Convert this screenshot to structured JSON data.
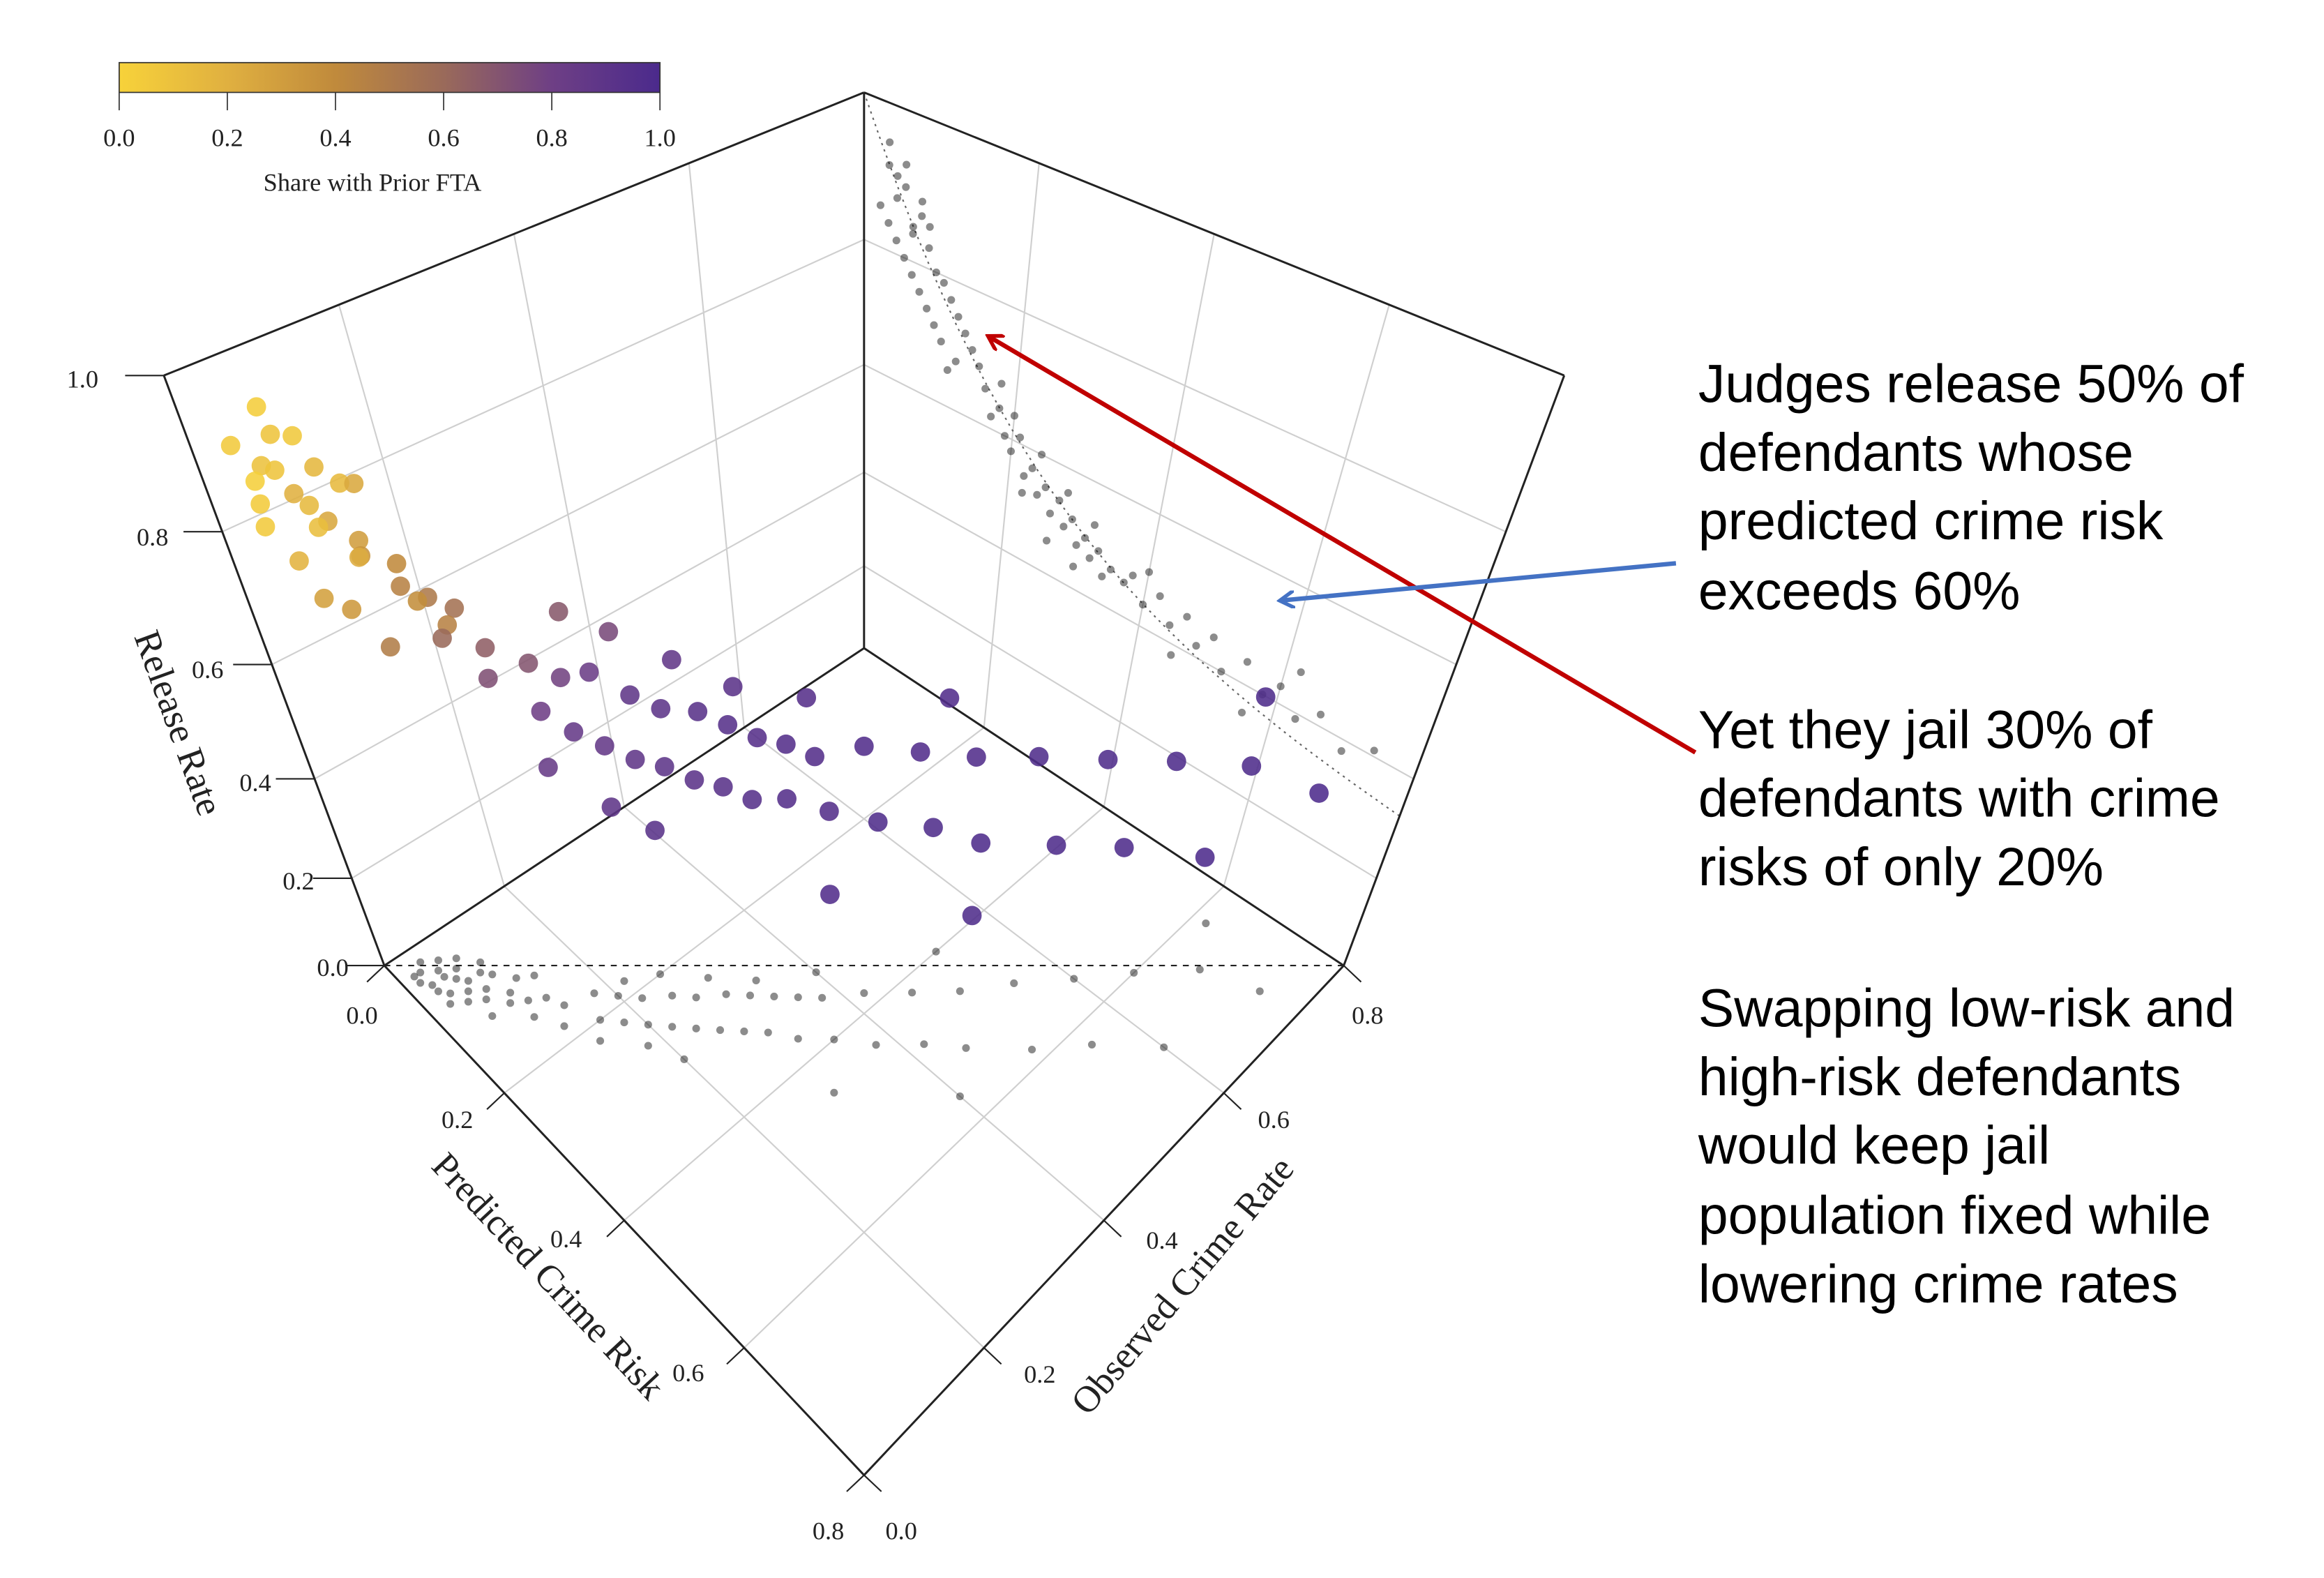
{
  "chart_data": {
    "type": "scatter",
    "subtype": "3d-scatter",
    "title": "",
    "grid": true,
    "axes": {
      "x": {
        "label": "Predicted Crime Risk",
        "range": [
          0,
          0.8
        ],
        "ticks": [
          "0.0",
          "0.2",
          "0.4",
          "0.6",
          "0.8"
        ]
      },
      "y": {
        "label": "Observed Crime Rate",
        "range": [
          0,
          0.8
        ],
        "ticks": [
          "0.0",
          "0.2",
          "0.4",
          "0.6",
          "0.8"
        ]
      },
      "z": {
        "label": "Release Rate",
        "range": [
          0,
          1.0
        ],
        "ticks": [
          "0.0",
          "0.2",
          "0.4",
          "0.6",
          "0.8",
          "1.0"
        ]
      }
    },
    "colorbar": {
      "label": "Share with Prior FTA",
      "range": [
        0,
        1
      ],
      "ticks": [
        "0.0",
        "0.2",
        "0.4",
        "0.6",
        "0.8",
        "1.0"
      ],
      "colors": [
        "#f7d23a",
        "#e0b040",
        "#c08a3c",
        "#9a6a5a",
        "#6e3f85",
        "#4b2a8c"
      ],
      "placement": "top-left"
    },
    "floor_projection": true,
    "wall_projection": true,
    "diagonal_reference_line": "dashed",
    "wall_fit_curve": "dotted",
    "projection_color": "#000000",
    "points": {
      "columns": [
        "predicted_crime_risk",
        "observed_crime_rate",
        "release_rate",
        "share_prior_fta"
      ],
      "values": [
        [
          0.03,
          0.02,
          0.92,
          0.05
        ],
        [
          0.04,
          0.05,
          0.88,
          0.08
        ],
        [
          0.05,
          0.03,
          0.9,
          0.1
        ],
        [
          0.02,
          0.04,
          0.86,
          0.02
        ],
        [
          0.06,
          0.06,
          0.84,
          0.15
        ],
        [
          0.04,
          0.02,
          0.82,
          0.05
        ],
        [
          0.07,
          0.04,
          0.87,
          0.2
        ],
        [
          0.05,
          0.07,
          0.8,
          0.12
        ],
        [
          0.08,
          0.06,
          0.83,
          0.25
        ],
        [
          0.03,
          0.06,
          0.95,
          0.03
        ],
        [
          0.06,
          0.03,
          0.78,
          0.18
        ],
        [
          0.09,
          0.08,
          0.8,
          0.3
        ],
        [
          0.07,
          0.09,
          0.76,
          0.22
        ],
        [
          0.1,
          0.07,
          0.79,
          0.35
        ],
        [
          0.04,
          0.08,
          0.91,
          0.06
        ],
        [
          0.08,
          0.03,
          0.74,
          0.28
        ],
        [
          0.11,
          0.1,
          0.77,
          0.4
        ],
        [
          0.06,
          0.1,
          0.85,
          0.14
        ],
        [
          0.09,
          0.05,
          0.72,
          0.32
        ],
        [
          0.12,
          0.09,
          0.75,
          0.45
        ],
        [
          0.05,
          0.05,
          0.93,
          0.08
        ],
        [
          0.1,
          0.12,
          0.7,
          0.38
        ],
        [
          0.13,
          0.11,
          0.73,
          0.5
        ],
        [
          0.07,
          0.07,
          0.89,
          0.16
        ],
        [
          0.12,
          0.06,
          0.68,
          0.48
        ],
        [
          0.14,
          0.13,
          0.71,
          0.55
        ],
        [
          0.08,
          0.1,
          0.86,
          0.24
        ],
        [
          0.11,
          0.14,
          0.66,
          0.45
        ],
        [
          0.15,
          0.1,
          0.69,
          0.6
        ],
        [
          0.03,
          0.03,
          0.84,
          0.04
        ],
        [
          0.16,
          0.14,
          0.66,
          0.65
        ],
        [
          0.17,
          0.18,
          0.62,
          0.7
        ],
        [
          0.18,
          0.12,
          0.64,
          0.72
        ],
        [
          0.19,
          0.2,
          0.6,
          0.78
        ],
        [
          0.2,
          0.16,
          0.58,
          0.8
        ],
        [
          0.21,
          0.22,
          0.61,
          0.82
        ],
        [
          0.22,
          0.18,
          0.55,
          0.85
        ],
        [
          0.23,
          0.25,
          0.57,
          0.88
        ],
        [
          0.24,
          0.2,
          0.53,
          0.86
        ],
        [
          0.25,
          0.27,
          0.55,
          0.9
        ],
        [
          0.26,
          0.22,
          0.51,
          0.88
        ],
        [
          0.27,
          0.3,
          0.54,
          0.92
        ],
        [
          0.28,
          0.24,
          0.5,
          0.9
        ],
        [
          0.29,
          0.32,
          0.52,
          0.93
        ],
        [
          0.3,
          0.26,
          0.48,
          0.91
        ],
        [
          0.31,
          0.34,
          0.5,
          0.94
        ],
        [
          0.32,
          0.28,
          0.47,
          0.92
        ],
        [
          0.33,
          0.36,
          0.49,
          0.95
        ],
        [
          0.34,
          0.3,
          0.45,
          0.93
        ],
        [
          0.35,
          0.38,
          0.47,
          0.95
        ],
        [
          0.18,
          0.22,
          0.68,
          0.68
        ],
        [
          0.2,
          0.26,
          0.64,
          0.75
        ],
        [
          0.22,
          0.14,
          0.52,
          0.84
        ],
        [
          0.24,
          0.3,
          0.6,
          0.87
        ],
        [
          0.26,
          0.18,
          0.46,
          0.89
        ],
        [
          0.28,
          0.34,
          0.56,
          0.91
        ],
        [
          0.3,
          0.2,
          0.44,
          0.92
        ],
        [
          0.32,
          0.4,
          0.53,
          0.94
        ],
        [
          0.37,
          0.32,
          0.46,
          0.95
        ],
        [
          0.38,
          0.42,
          0.48,
          0.96
        ],
        [
          0.4,
          0.35,
          0.44,
          0.95
        ],
        [
          0.42,
          0.46,
          0.47,
          0.96
        ],
        [
          0.44,
          0.38,
          0.43,
          0.97
        ],
        [
          0.46,
          0.5,
          0.46,
          0.96
        ],
        [
          0.48,
          0.42,
          0.42,
          0.97
        ],
        [
          0.5,
          0.55,
          0.45,
          0.97
        ],
        [
          0.52,
          0.45,
          0.4,
          0.98
        ],
        [
          0.55,
          0.6,
          0.44,
          0.97
        ],
        [
          0.58,
          0.5,
          0.4,
          0.98
        ],
        [
          0.6,
          0.65,
          0.43,
          0.98
        ],
        [
          0.63,
          0.55,
          0.39,
          0.98
        ],
        [
          0.66,
          0.7,
          0.42,
          0.98
        ],
        [
          0.7,
          0.6,
          0.38,
          0.99
        ],
        [
          0.74,
          0.72,
          0.41,
          0.99
        ],
        [
          0.45,
          0.3,
          0.38,
          0.96
        ],
        [
          0.56,
          0.4,
          0.35,
          0.97
        ],
        [
          0.62,
          0.75,
          0.47,
          0.98
        ],
        [
          0.4,
          0.52,
          0.5,
          0.96
        ]
      ]
    }
  },
  "annotations": {
    "paragraphs": [
      [
        "Judges release 50% of",
        "defendants whose",
        "predicted crime risk",
        "exceeds 60%"
      ],
      [
        "Yet they jail 30% of",
        "defendants with crime",
        "risks of only 20%"
      ],
      [
        "Swapping low-risk and",
        "high-risk defendants",
        "would keep jail",
        "population fixed while",
        "lowering crime rates"
      ]
    ],
    "arrow_colors": {
      "red": "#c00000",
      "blue": "#4472c4"
    }
  }
}
